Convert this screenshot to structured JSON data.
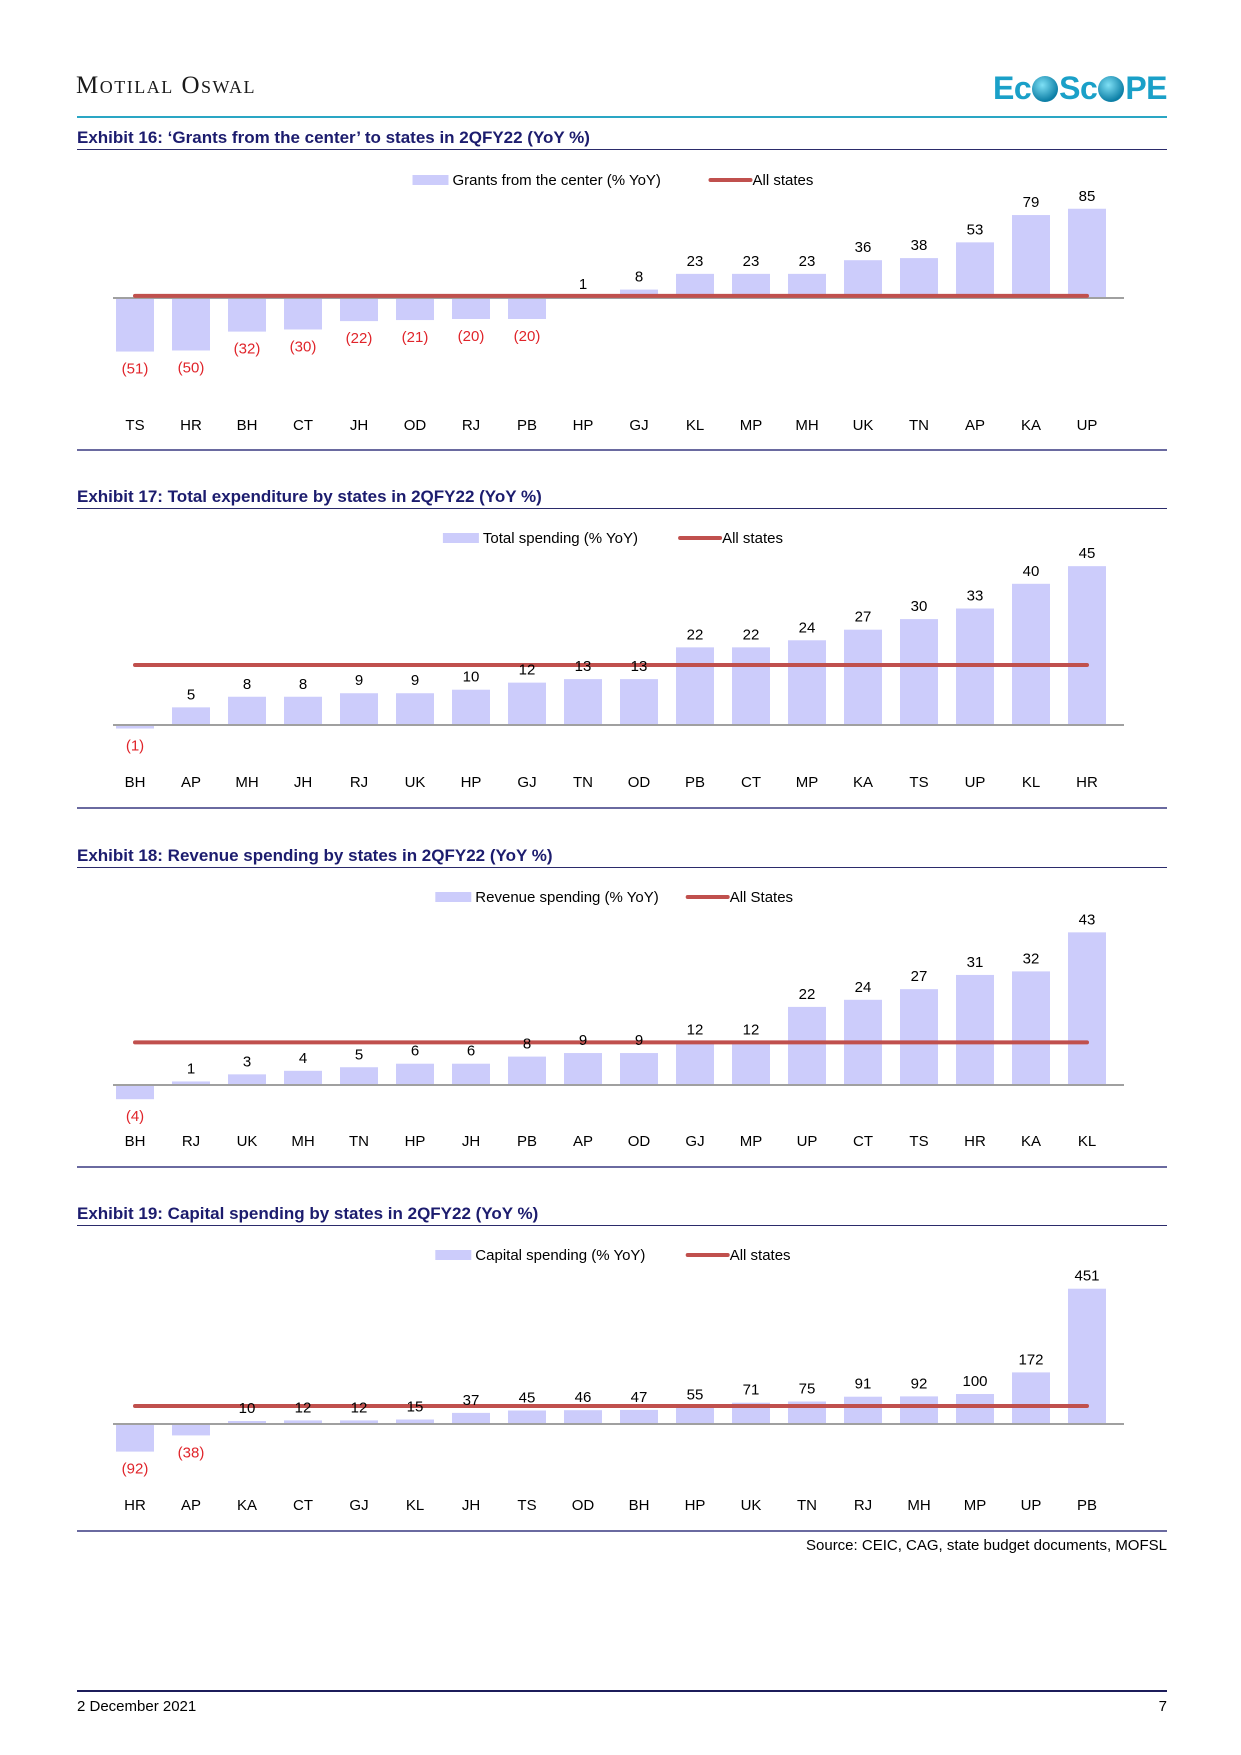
{
  "header": {
    "brand": "Motilal Oswal",
    "logo_parts": [
      "Ec",
      "S",
      "c",
      "PE"
    ]
  },
  "colors": {
    "bar": "#ccccfb",
    "line": "#c0504d",
    "negative_label": "#e0242a",
    "title": "#1c1c6e"
  },
  "chart_data": [
    {
      "type": "bar",
      "title": "Exhibit 16: ‘Grants from the center’ to states in 2QFY22 (YoY %)",
      "legend": {
        "bar": "Grants from the center (% YoY)",
        "line": "All states",
        "placement": "top-center"
      },
      "categories": [
        "TS",
        "HR",
        "BH",
        "CT",
        "JH",
        "OD",
        "RJ",
        "PB",
        "HP",
        "GJ",
        "KL",
        "MP",
        "MH",
        "UK",
        "TN",
        "AP",
        "KA",
        "UP"
      ],
      "values": [
        -51,
        -50,
        -32,
        -30,
        -22,
        -21,
        -20,
        -20,
        1,
        8,
        23,
        23,
        23,
        36,
        38,
        53,
        79,
        85
      ],
      "labels": [
        "(51)",
        "(50)",
        "(32)",
        "(30)",
        "(22)",
        "(21)",
        "(20)",
        "(20)",
        "1",
        "8",
        "23",
        "23",
        "23",
        "36",
        "38",
        "53",
        "79",
        "85"
      ],
      "reference_line": {
        "name": "All states",
        "value": 2
      },
      "ylim": [
        -60,
        95
      ],
      "grid": false
    },
    {
      "type": "bar",
      "title": "Exhibit 17: Total expenditure by states in 2QFY22 (YoY %)",
      "legend": {
        "bar": "Total spending (% YoY)",
        "line": "All states",
        "placement": "top-center"
      },
      "categories": [
        "BH",
        "AP",
        "MH",
        "JH",
        "RJ",
        "UK",
        "HP",
        "GJ",
        "TN",
        "OD",
        "PB",
        "CT",
        "MP",
        "KA",
        "TS",
        "UP",
        "KL",
        "HR"
      ],
      "values": [
        -1,
        5,
        8,
        8,
        9,
        9,
        10,
        12,
        13,
        13,
        22,
        22,
        24,
        27,
        30,
        33,
        40,
        45
      ],
      "labels": [
        "(1)",
        "5",
        "8",
        "8",
        "9",
        "9",
        "10",
        "12",
        "13",
        "13",
        "22",
        "22",
        "24",
        "27",
        "30",
        "33",
        "40",
        "45"
      ],
      "reference_line": {
        "name": "All states",
        "value": 17
      },
      "ylim": [
        -5,
        50
      ],
      "grid": false
    },
    {
      "type": "bar",
      "title": "Exhibit 18: Revenue spending by states in 2QFY22 (YoY %)",
      "legend": {
        "bar": "Revenue spending (% YoY)",
        "line": "All States",
        "placement": "top-center"
      },
      "categories": [
        "BH",
        "RJ",
        "UK",
        "MH",
        "TN",
        "HP",
        "JH",
        "PB",
        "AP",
        "OD",
        "GJ",
        "MP",
        "UP",
        "CT",
        "TS",
        "HR",
        "KA",
        "KL"
      ],
      "values": [
        -4,
        1,
        3,
        4,
        5,
        6,
        6,
        8,
        9,
        9,
        12,
        12,
        22,
        24,
        27,
        31,
        32,
        43
      ],
      "labels": [
        "(4)",
        "1",
        "3",
        "4",
        "5",
        "6",
        "6",
        "8",
        "9",
        "9",
        "12",
        "12",
        "22",
        "24",
        "27",
        "31",
        "32",
        "43"
      ],
      "reference_line": {
        "name": "All States",
        "value": 12
      },
      "ylim": [
        -10,
        48
      ],
      "grid": false
    },
    {
      "type": "bar",
      "title": "Exhibit 19: Capital spending by states in 2QFY22 (YoY %)",
      "legend": {
        "bar": "Capital spending (% YoY)",
        "line": "All states",
        "placement": "top-center"
      },
      "categories": [
        "HR",
        "AP",
        "KA",
        "CT",
        "GJ",
        "KL",
        "JH",
        "TS",
        "OD",
        "BH",
        "HP",
        "UK",
        "TN",
        "RJ",
        "MH",
        "MP",
        "UP",
        "PB"
      ],
      "values": [
        -92,
        -38,
        10,
        12,
        12,
        15,
        37,
        45,
        46,
        47,
        55,
        71,
        75,
        91,
        92,
        100,
        172,
        451
      ],
      "labels": [
        "(92)",
        "(38)",
        "10",
        "12",
        "12",
        "15",
        "37",
        "45",
        "46",
        "47",
        "55",
        "71",
        "75",
        "91",
        "92",
        "100",
        "172",
        "451"
      ],
      "reference_line": {
        "name": "All states",
        "value": 60
      },
      "ylim": [
        -110,
        480
      ],
      "grid": false
    }
  ],
  "source": "Source: CEIC, CAG, state budget documents, MOFSL",
  "footer": {
    "date": "2 December 2021",
    "page": "7"
  }
}
